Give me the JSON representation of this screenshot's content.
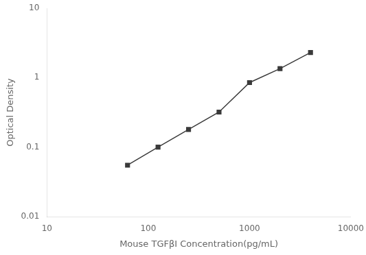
{
  "chart_data": {
    "type": "line",
    "x": [
      62.5,
      125,
      250,
      500,
      1000,
      2000,
      4000
    ],
    "values": [
      0.055,
      0.1,
      0.18,
      0.32,
      0.85,
      1.35,
      2.3
    ],
    "xlabel": "Mouse TGFβI Concentration(pg/mL)",
    "ylabel": "Optical Density",
    "xlim": [
      10,
      10000
    ],
    "ylim": [
      0.01,
      10
    ],
    "xticks": [
      10,
      100,
      1000,
      10000
    ],
    "yticks": [
      0.01,
      0.1,
      1,
      10
    ],
    "log": true,
    "grid": false,
    "color": "#3a3a3a",
    "marker": "square",
    "line_style": "solid"
  }
}
